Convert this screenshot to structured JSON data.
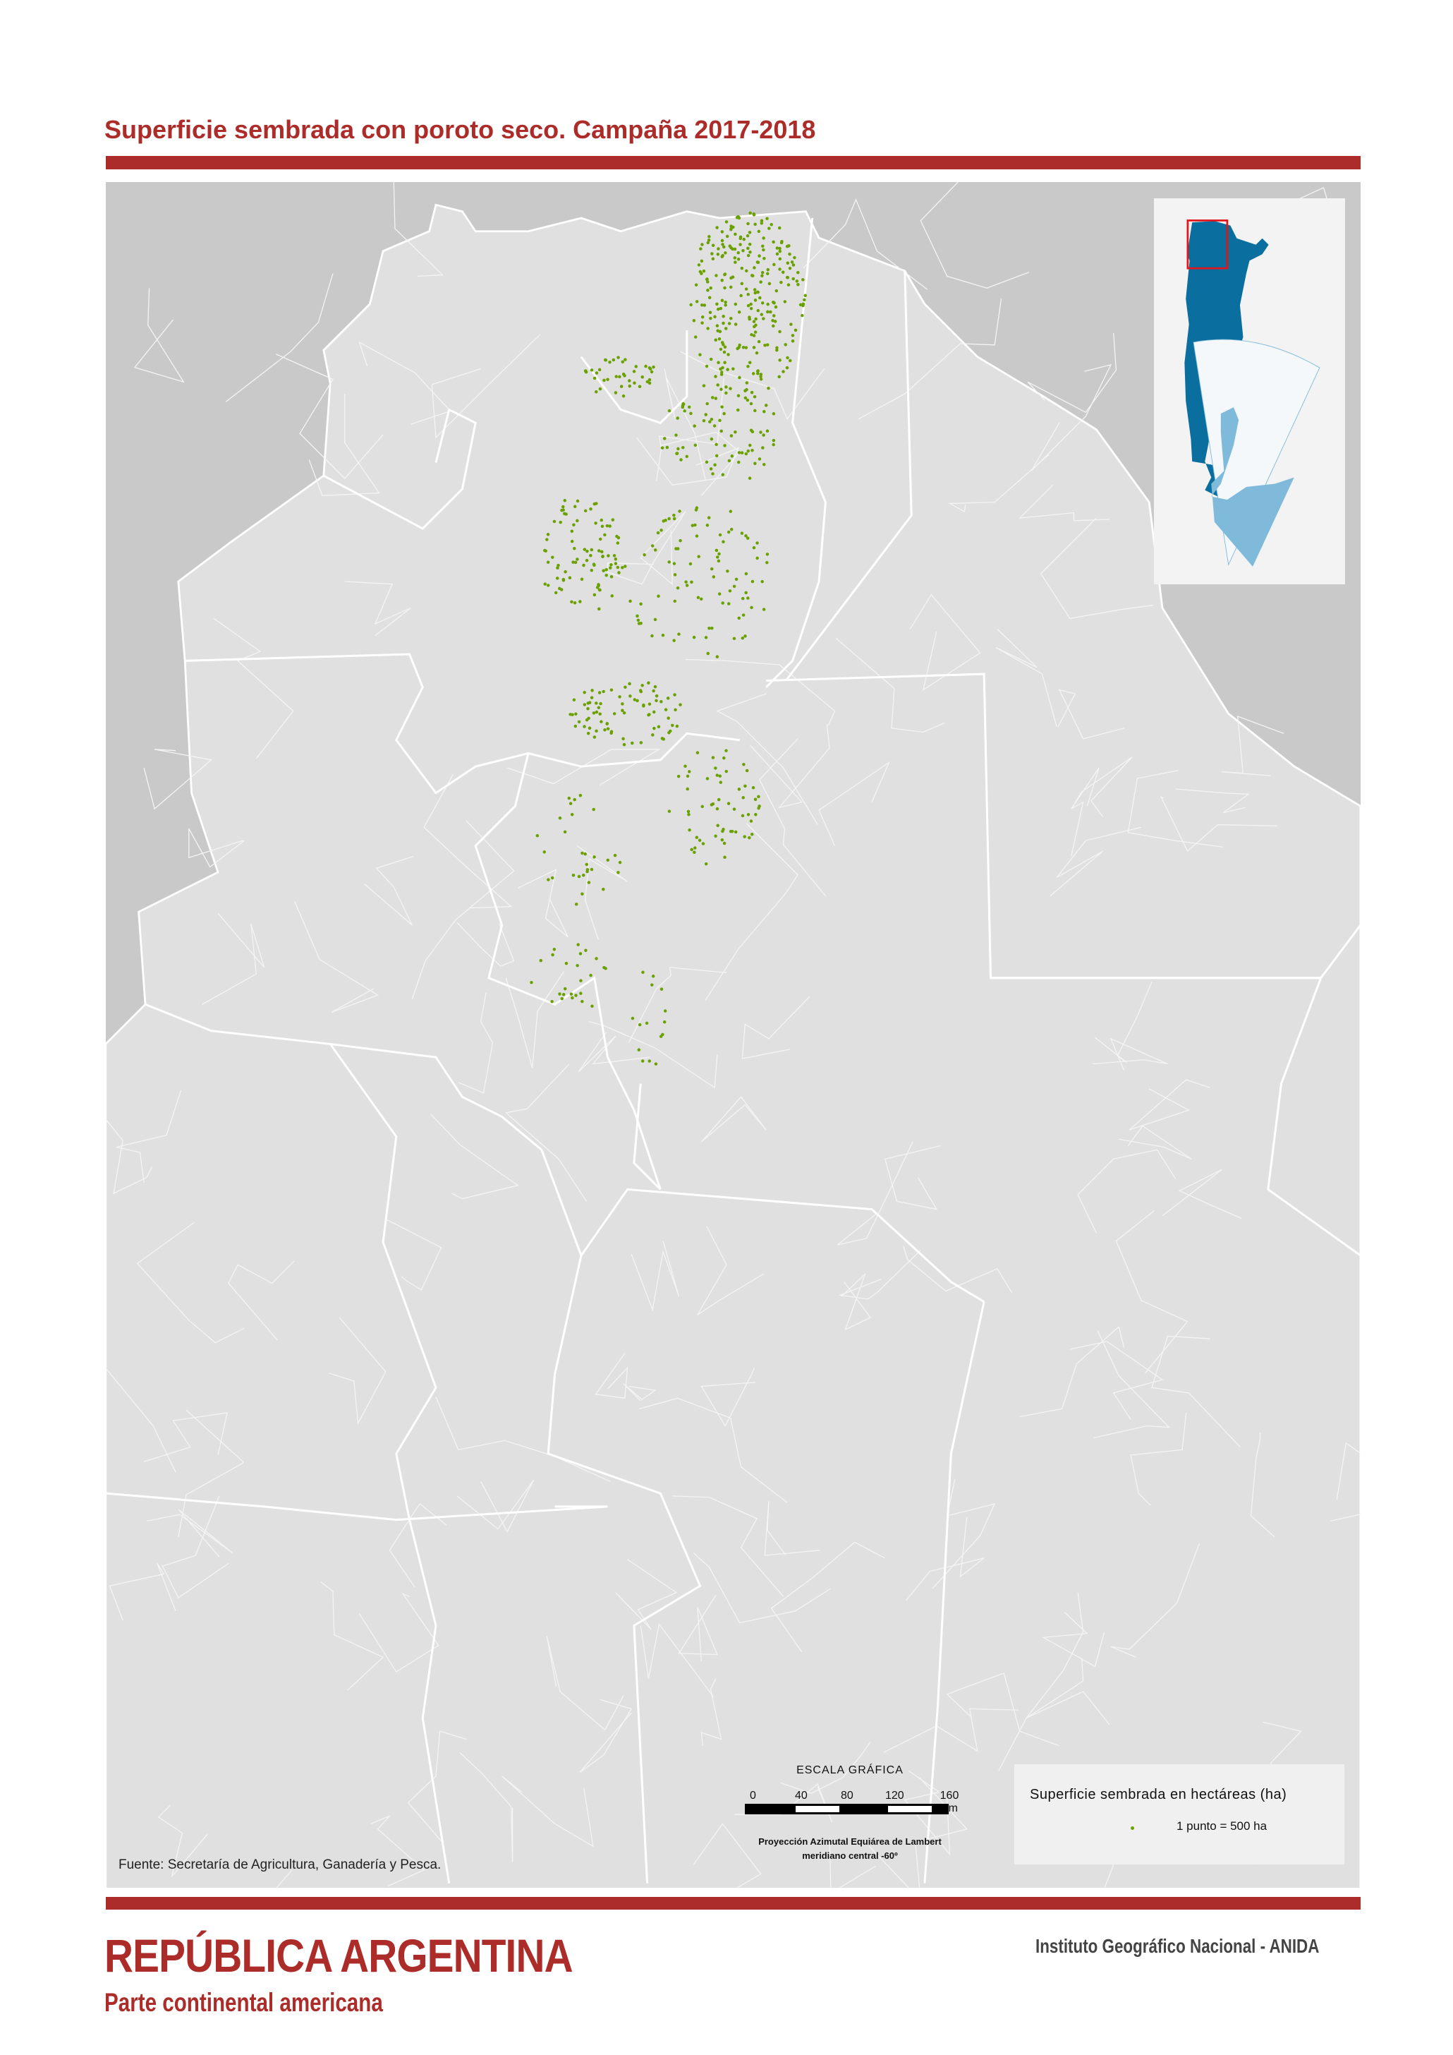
{
  "title": "Superficie sembrada con poroto seco. Campaña 2017-2018",
  "source": "Fuente: Secretaría de Agricultura, Ganadería y Pesca.",
  "scale": {
    "heading": "ESCALA GRÁFICA",
    "ticks": [
      "0",
      "40",
      "80",
      "120",
      "160 Km"
    ],
    "projection_line1": "Proyección Azimutal Equiárea de Lambert",
    "projection_line2": "meridiano central -60º"
  },
  "legend": {
    "title": "Superficie sembrada en hectáreas (ha)",
    "item": "1 punto = 500 ha",
    "dot_color": "#6aa100"
  },
  "footer": {
    "country": "REPÚBLICA ARGENTINA",
    "subtitle": "Parte continental americana",
    "institution": "Instituto Geográfico Nacional - ANIDA"
  },
  "colors": {
    "accent": "#ab2c29",
    "argentina_fill": "#e0e0e0",
    "neighbor_fill": "#c9c9c9",
    "inset_country": "#0a6e9e",
    "inset_antarctica": "#7fbadb",
    "locator_box": "#e3141b"
  }
}
